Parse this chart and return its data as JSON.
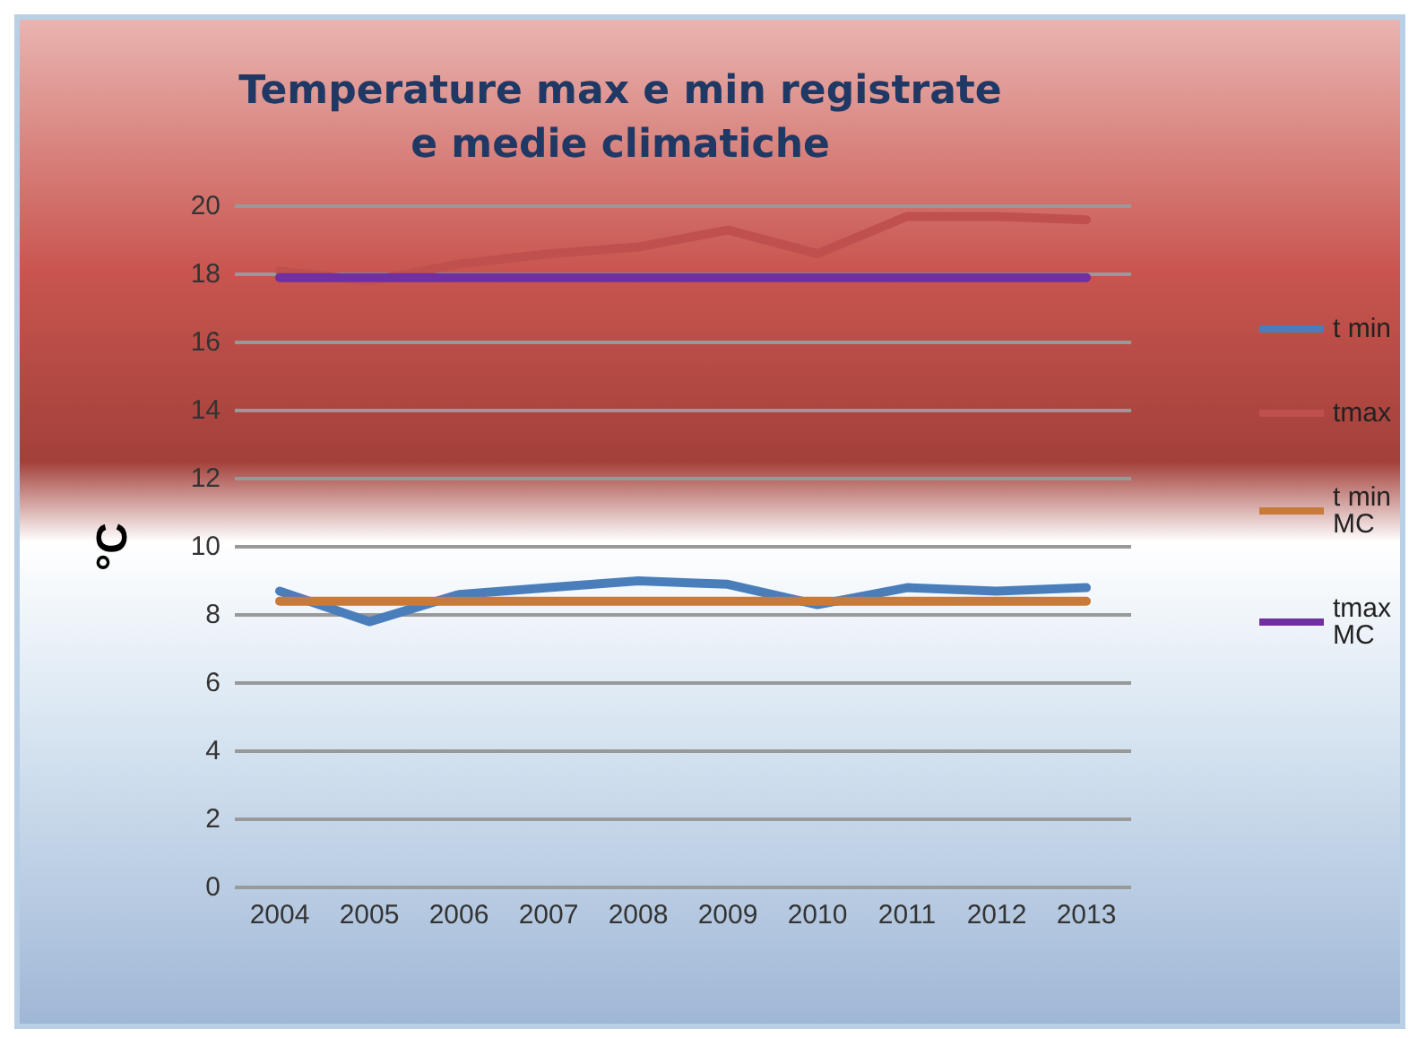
{
  "chart_data": {
    "type": "line",
    "title": "Temperature max e min registrate\ne medie climatiche",
    "ylabel": "°C",
    "categories": [
      "2004",
      "2005",
      "2006",
      "2007",
      "2008",
      "2009",
      "2010",
      "2011",
      "2012",
      "2013"
    ],
    "series": [
      {
        "name": "t min",
        "color": "#4a7ebb",
        "values": [
          8.7,
          7.8,
          8.6,
          8.8,
          9.0,
          8.9,
          8.3,
          8.8,
          8.7,
          8.8
        ]
      },
      {
        "name": "tmax",
        "color": "#c0504d",
        "values": [
          18.1,
          17.8,
          18.3,
          18.6,
          18.8,
          19.3,
          18.6,
          19.7,
          19.7,
          19.6
        ]
      },
      {
        "name": "t min\nMC",
        "color": "#c77a3a",
        "values": [
          8.4,
          8.4,
          8.4,
          8.4,
          8.4,
          8.4,
          8.4,
          8.4,
          8.4,
          8.4
        ]
      },
      {
        "name": "tmax\nMC",
        "color": "#7030a0",
        "values": [
          17.9,
          17.9,
          17.9,
          17.9,
          17.9,
          17.9,
          17.9,
          17.9,
          17.9,
          17.9
        ]
      }
    ],
    "ylim": [
      0,
      20
    ],
    "yticks": [
      0,
      2,
      4,
      6,
      8,
      10,
      12,
      14,
      16,
      18,
      20
    ],
    "grid": "y",
    "legend": "right",
    "marker": "none",
    "line_style": "solid"
  }
}
